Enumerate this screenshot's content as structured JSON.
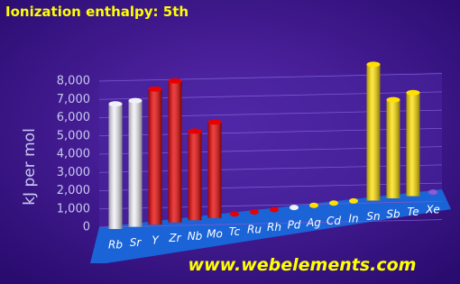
{
  "chart_data": {
    "type": "bar3d",
    "title": "Ionization enthalpy: 5th",
    "y_label": "kJ per mol",
    "footer": "www.webelements.com",
    "categories": [
      "Rb",
      "Sr",
      "Y",
      "Zr",
      "Nb",
      "Mo",
      "Tc",
      "Ru",
      "Rh",
      "Pd",
      "Ag",
      "Cd",
      "In",
      "Sn",
      "Sb",
      "Te",
      "Xe"
    ],
    "values": [
      6850,
      6910,
      7430,
      7752,
      4877,
      5257,
      null,
      null,
      null,
      null,
      null,
      null,
      null,
      7456,
      5400,
      5668,
      null
    ],
    "colors": [
      "#f0f0f8",
      "#f0f0f8",
      "#e80000",
      "#e80000",
      "#e80000",
      "#e80000",
      "#e80000",
      "#e80000",
      "#e80000",
      "#f0f0f8",
      "#ffe000",
      "#ffe000",
      "#ffe000",
      "#ffe000",
      "#ffe000",
      "#ffe000",
      "#8a5ad8"
    ],
    "ylim": [
      0,
      8000
    ],
    "yticks": [
      0,
      {
        "value": 1000,
        "label": "1,000"
      },
      {
        "value": 2000,
        "label": "2,000"
      },
      {
        "value": 3000,
        "label": "3,000"
      },
      {
        "value": 4000,
        "label": "4,000"
      },
      {
        "value": 5000,
        "label": "5,000"
      },
      {
        "value": 6000,
        "label": "6,000"
      },
      {
        "value": 7000,
        "label": "7,000"
      },
      {
        "value": 8000,
        "label": "8,000"
      }
    ],
    "grid": true
  }
}
